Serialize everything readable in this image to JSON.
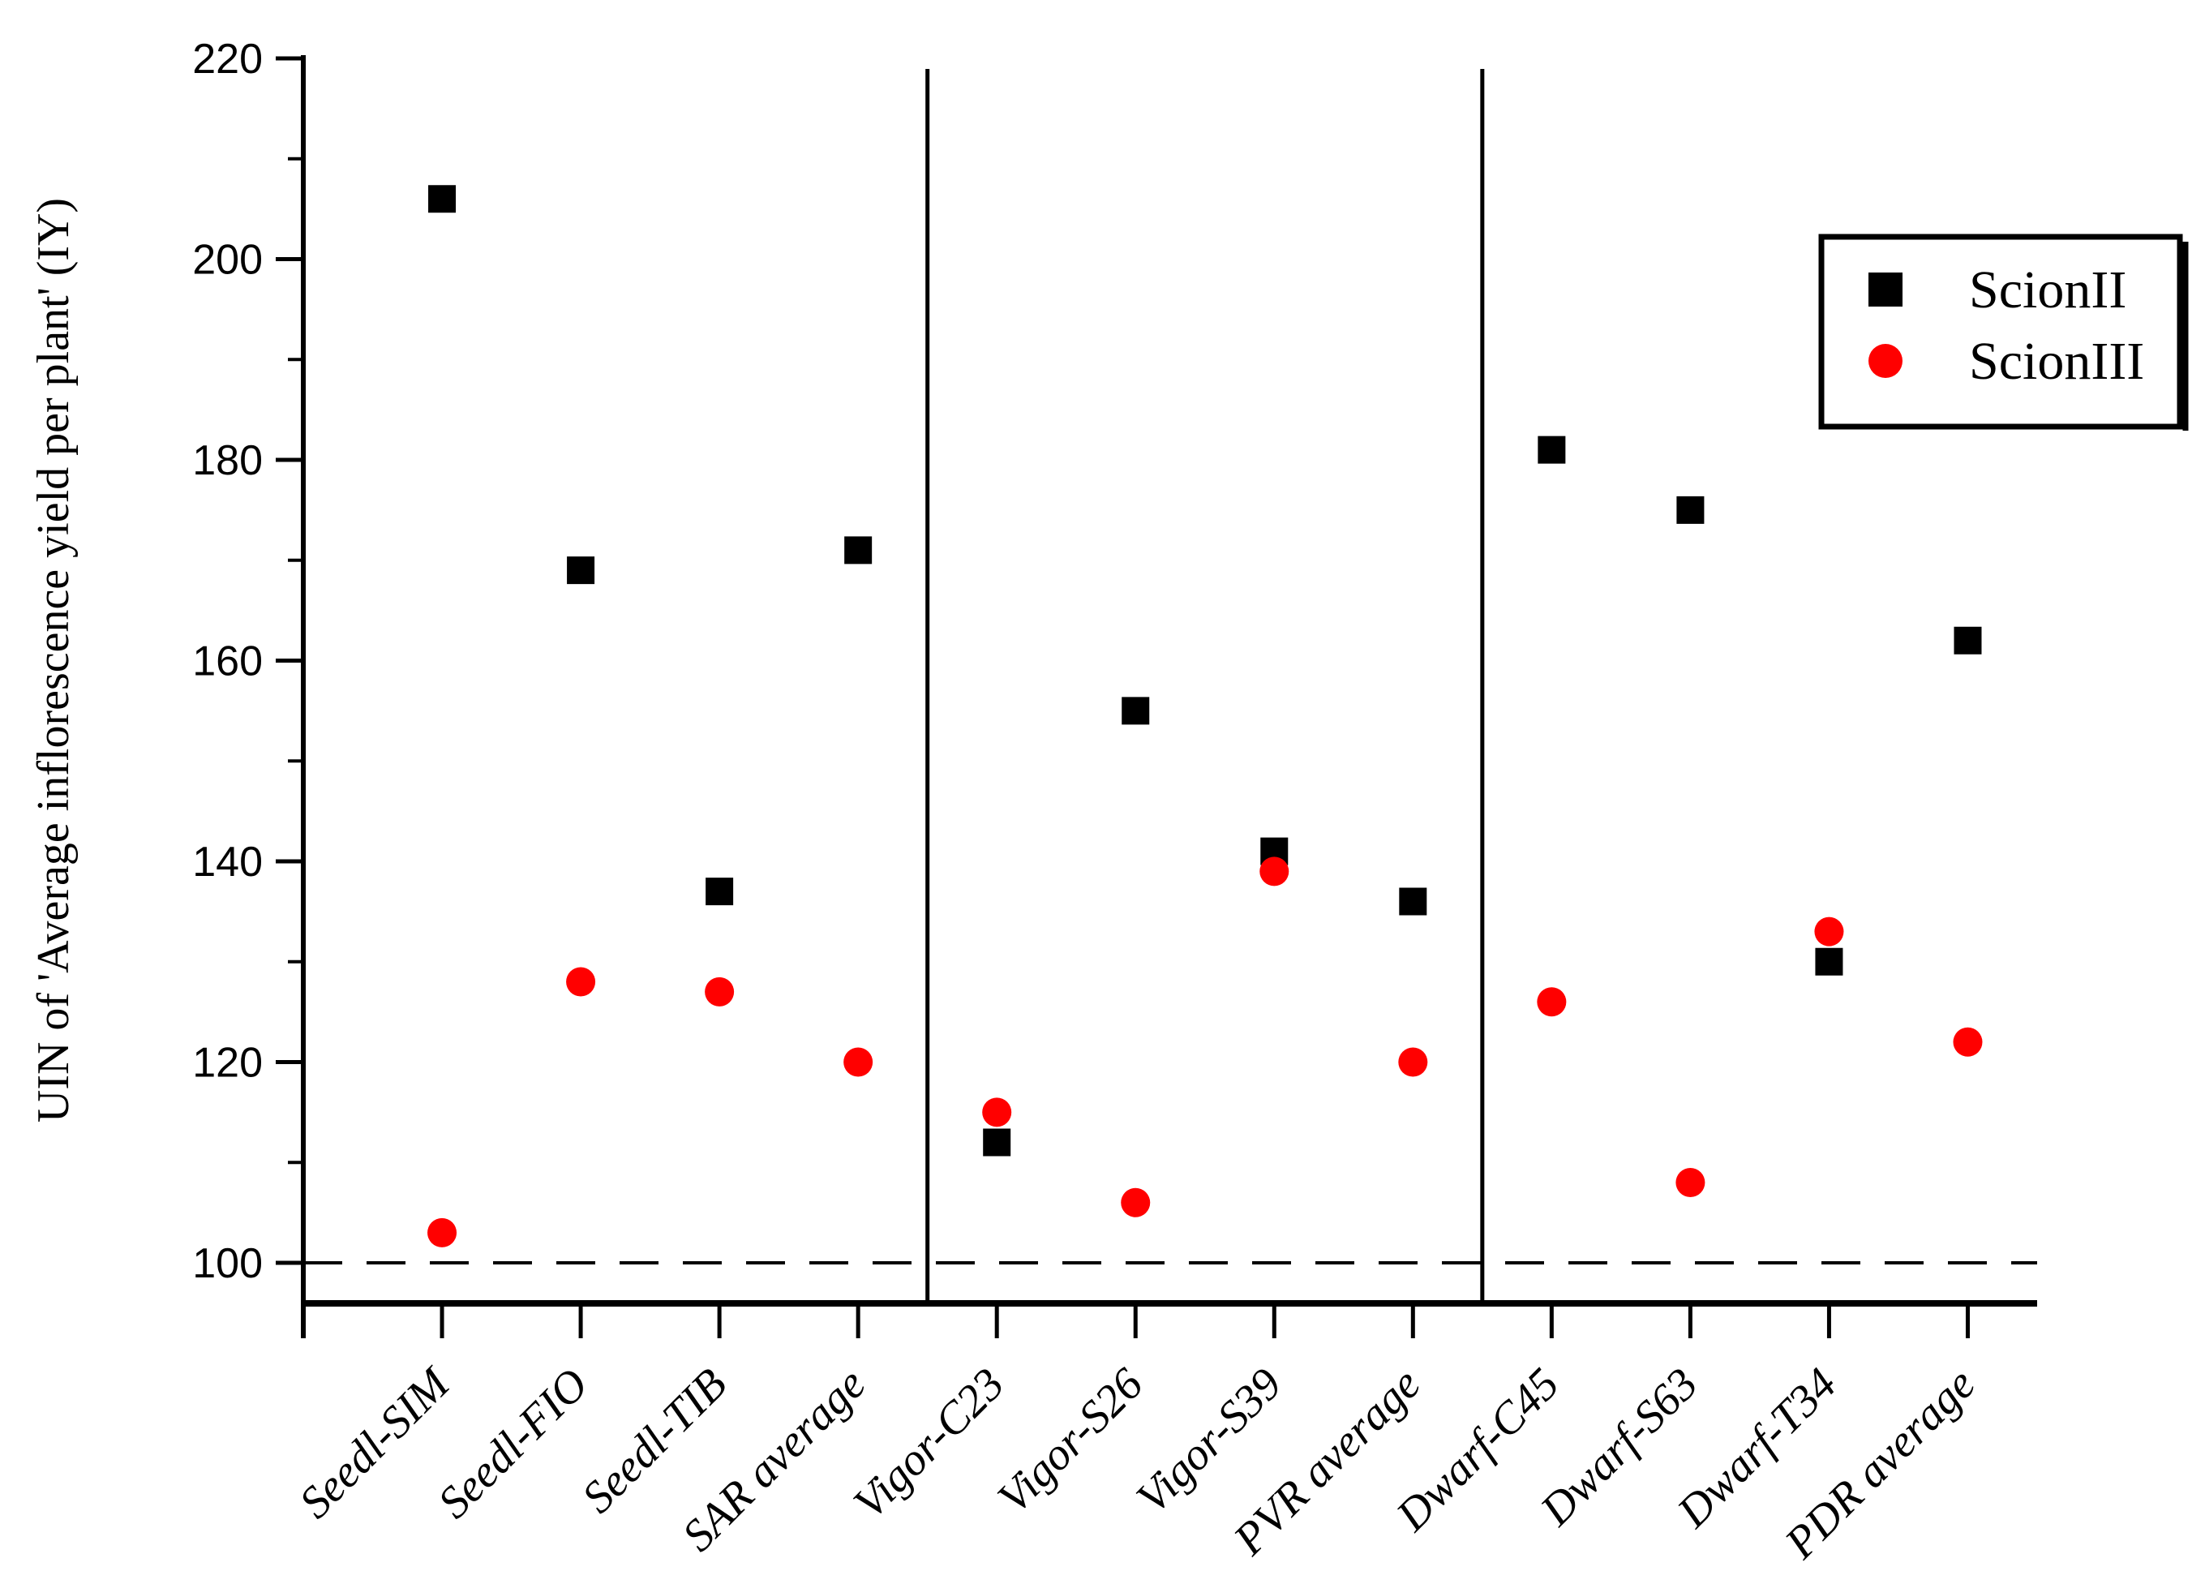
{
  "figure": {
    "background_color": "#ffffff",
    "frame_color": "#000000"
  },
  "chart_data": {
    "type": "scatter",
    "title": "",
    "xlabel": "",
    "ylabel": "UIN of 'Average inflorescence yield per plant' (IY)",
    "categories": [
      "Seedl-SIM",
      "Seedl-FIO",
      "Seedl-TIB",
      "SAR average",
      "Vigor-C23",
      "Vigor-S26",
      "Vigor-S39",
      "PVR average",
      "Dwarf-C45",
      "Dwarf-S63",
      "Dwarf-T34",
      "PDR average"
    ],
    "series": [
      {
        "name": "ScionII",
        "marker": "square",
        "color": "#000000",
        "values": [
          206,
          169,
          137,
          171,
          112,
          155,
          141,
          136,
          181,
          175,
          130,
          162
        ]
      },
      {
        "name": "ScionIII",
        "marker": "circle",
        "color": "#ff0000",
        "values": [
          103,
          128,
          127,
          120,
          115,
          106,
          139,
          120,
          126,
          108,
          133,
          122
        ]
      }
    ],
    "y_axis": {
      "min": 96,
      "max": 222,
      "major_ticks": [
        100,
        120,
        140,
        160,
        180,
        200,
        220
      ],
      "minor_ticks": [
        110,
        130,
        150,
        170,
        190,
        210
      ]
    },
    "reference_line_y": 100,
    "reference_line_style": "dashed",
    "group_dividers_between": [
      [
        3,
        4
      ],
      [
        7,
        8
      ]
    ],
    "legend": {
      "position": "top-right",
      "entries": [
        "ScionII",
        "ScionIII"
      ]
    },
    "grid": false,
    "x_label_rotation_deg": -45
  }
}
